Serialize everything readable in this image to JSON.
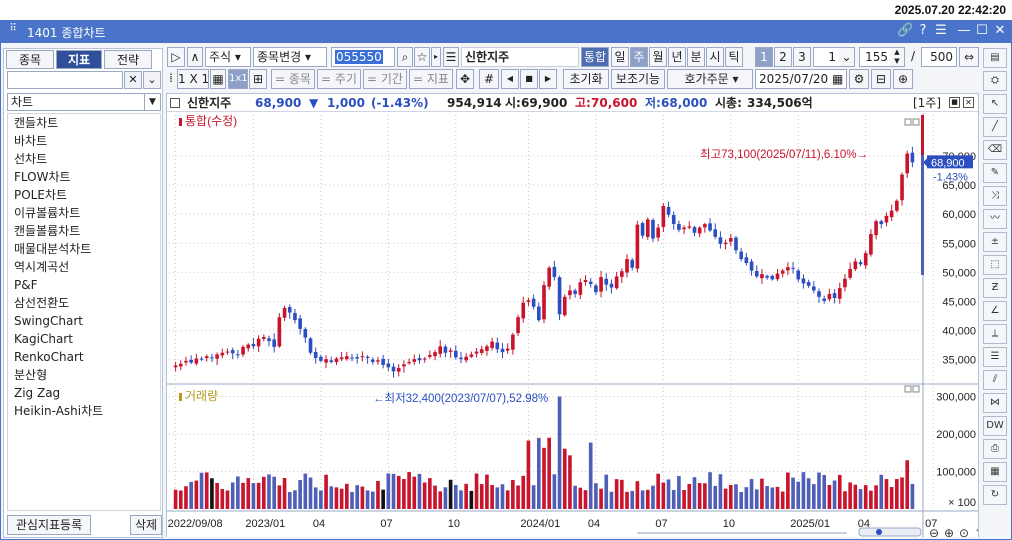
{
  "clock": "2025.07.20 22:42:20",
  "window": {
    "title": "1401 종합차트"
  },
  "left_panel": {
    "tabs": [
      "종목",
      "지표",
      "전략"
    ],
    "active_tab": 1,
    "search_value": "",
    "category": "차트",
    "items": [
      "캔들차트",
      "바차트",
      "선차트",
      "FLOW차트",
      "POLE차트",
      "이큐볼륨차트",
      "캔들볼륨차트",
      "매물대분석차트",
      "역시계곡선",
      "P&F",
      "삼선전환도",
      "SwingChart",
      "KagiChart",
      "RenkoChart",
      "분산형",
      "Zig Zag",
      "Heikin-Ashi차트"
    ],
    "register_label": "관심지표등록",
    "delete_label": "삭제"
  },
  "toolbar": {
    "market": "주식",
    "change_label": "종목변경",
    "code": "055550",
    "name": "신한지주",
    "tonghap": "통합",
    "periods": [
      "일",
      "주",
      "월",
      "년",
      "분",
      "시",
      "틱"
    ],
    "active_period": "주",
    "nums": [
      "1",
      "2",
      "3"
    ],
    "count1": "1",
    "count2": "155",
    "slash": "/",
    "count3": "500",
    "layout_label": "1 X 1",
    "grid_1x1": "1x1",
    "row2": [
      "= 종목",
      "= 주기",
      "= 기간",
      "= 지표"
    ],
    "reset": "초기화",
    "aux": "보조기능",
    "order": "호가주문",
    "date": "2025/07/20"
  },
  "info": {
    "name": "신한지주",
    "price": "68,900",
    "change_arrow": "▼",
    "change": "1,000",
    "change_pct": "(-1.43%)",
    "volume": "954,914",
    "open_label": "시:",
    "open": "69,900",
    "high_label": "고:",
    "high": "70,600",
    "low_label": "저:",
    "low": "68,000",
    "cap_label": "시총:",
    "cap": "334,506억",
    "period_tag": "[1주]"
  },
  "chart_data": {
    "type": "candlestick",
    "price_panel": {
      "label": "통합(수정)",
      "ylim": [
        31000,
        76000
      ],
      "ticks": [
        35000,
        40000,
        45000,
        50000,
        55000,
        60000,
        65000,
        70000
      ],
      "tick_labels": [
        "35,000",
        "40,000",
        "45,000",
        "50,000",
        "55,000",
        "60,000",
        "65,000",
        "70,000"
      ],
      "last_price_label": "68,900",
      "last_pct_label": "-1.43%",
      "high_annotation": "최고73,100(2025/07/11),6.10%→",
      "low_annotation": "←최저32,400(2023/07/07),52.98%",
      "close_series": [
        34000,
        34300,
        34800,
        34500,
        35200,
        35000,
        35600,
        35300,
        35900,
        36200,
        36400,
        36100,
        35800,
        37200,
        37600,
        37300,
        38600,
        38900,
        38200,
        37200,
        42300,
        43900,
        43100,
        41800,
        40300,
        38800,
        36200,
        35300,
        34800,
        35100,
        34600,
        35200,
        35400,
        35600,
        35300,
        35200,
        35600,
        35300,
        34600,
        34900,
        34100,
        33700,
        33000,
        33600,
        34200,
        34600,
        35100,
        34900,
        35200,
        35800,
        36300,
        37300,
        36200,
        36600,
        35400,
        35100,
        35500,
        35900,
        36400,
        36800,
        37300,
        38100,
        36800,
        36300,
        36900,
        39300,
        42300,
        44800,
        45200,
        44100,
        41800,
        47800,
        50800,
        49200,
        42800,
        45800,
        46900,
        46300,
        48300,
        48700,
        48000,
        46600,
        49200,
        47900,
        47400,
        49300,
        50200,
        52300,
        50800,
        58200,
        56300,
        59100,
        55800,
        57700,
        61400,
        59900,
        58300,
        57300,
        57700,
        57900,
        56800,
        57700,
        58300,
        57200,
        56100,
        54900,
        55100,
        55900,
        53800,
        52300,
        51600,
        50300,
        49300,
        49700,
        49100,
        48800,
        49800,
        50300,
        50900,
        50600,
        48800,
        48100,
        47700,
        46900,
        45800,
        45100,
        46300,
        45600,
        47300,
        48900,
        50600,
        51900,
        51400,
        53300,
        56600,
        58800,
        58300,
        59700,
        60600,
        62300,
        66800,
        70400,
        68900
      ],
      "markers": [
        {
          "text": "최고73,100(2025/07/11),6.10%→",
          "value": 73100
        },
        {
          "text": "←최저32,400(2023/07/07),52.98%",
          "value": 32400
        }
      ]
    },
    "volume_panel": {
      "label": "거래량",
      "ylim": [
        0,
        320000
      ],
      "ticks": [
        100,
        100000,
        200000,
        300000
      ],
      "tick_labels": [
        "× 100",
        "100,000",
        "200,000",
        "300,000"
      ]
    },
    "x_tick_labels": [
      "2022/09/08",
      "2023/01",
      "04",
      "07",
      "10",
      "2024/01",
      "04",
      "07",
      "10",
      "2025/01",
      "04",
      "07"
    ],
    "x_tick_index": [
      0,
      15,
      28,
      41,
      54,
      68,
      81,
      94,
      107,
      120,
      133,
      146
    ]
  }
}
